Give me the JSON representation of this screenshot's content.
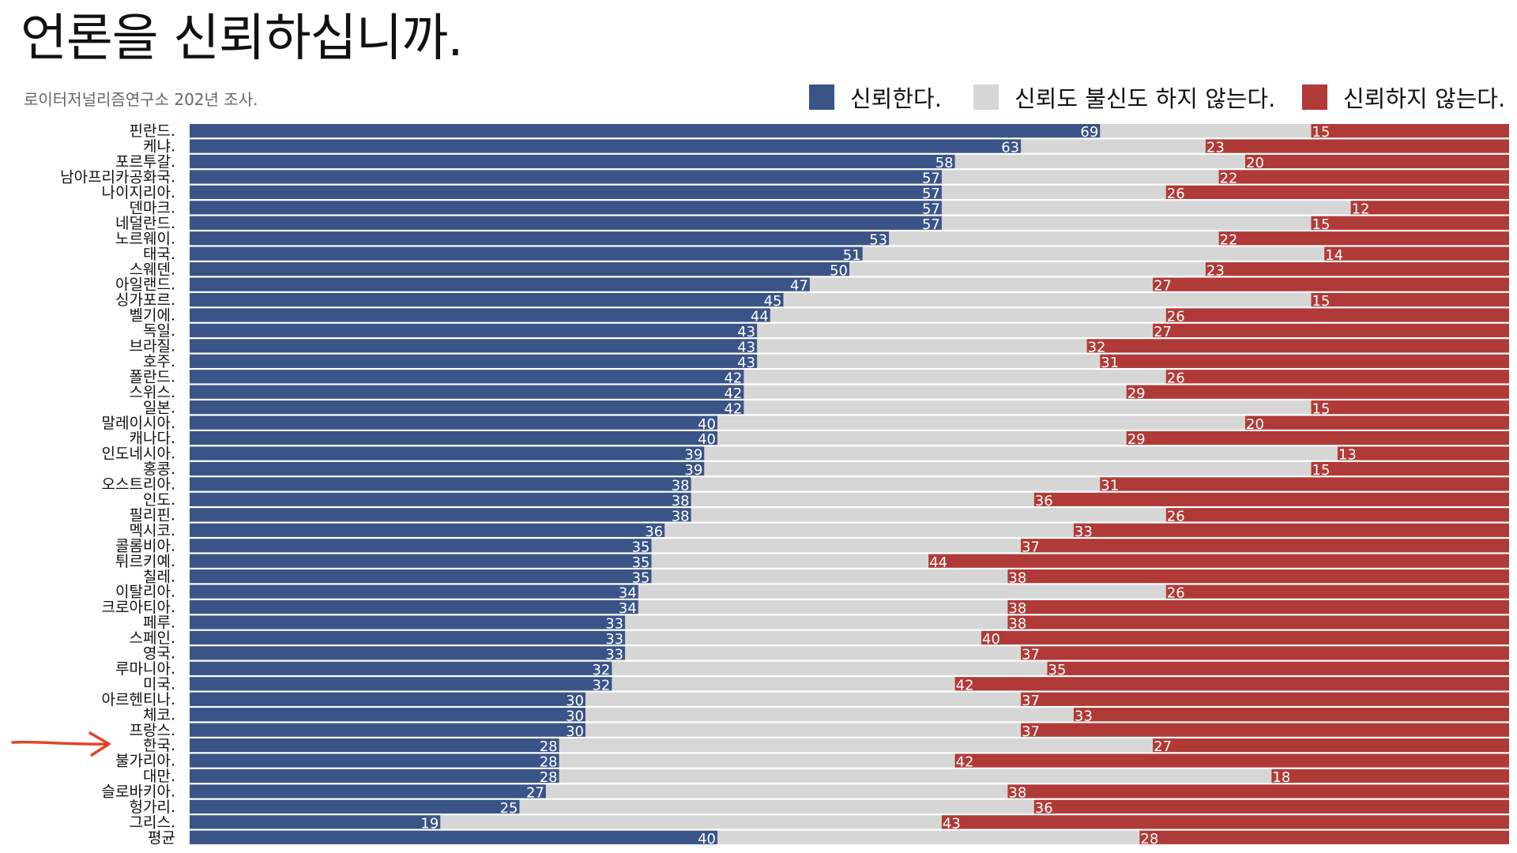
{
  "header": {
    "title": "언론을 신뢰하십니까.",
    "subtitle": "로이터저널리즘연구소 202년 조사."
  },
  "colors": {
    "trust": "#3a5487",
    "neutral": "#d6d6d6",
    "distrust": "#b03a37",
    "separator": "#ffffff",
    "arrow": "#e0442a"
  },
  "legend": [
    {
      "key": "trust",
      "label": "신뢰한다."
    },
    {
      "key": "neutral",
      "label": "신뢰도 불신도 하지 않는다."
    },
    {
      "key": "distrust",
      "label": "신뢰하지 않는다."
    }
  ],
  "annotation": {
    "arrow_target": "한국.",
    "icon": "red-hand-drawn-arrow-icon"
  },
  "chart_data": {
    "type": "bar",
    "orientation": "horizontal",
    "stacked": true,
    "normalized_to": 100,
    "title": "언론을 신뢰하십니까.",
    "subtitle": "로이터저널리즘연구소 202년 조사.",
    "xlim": [
      0,
      100
    ],
    "grid": false,
    "legend_position": "top-right",
    "categories": [
      "핀란드.",
      "케냐.",
      "포르투갈.",
      "남아프리카공화국.",
      "나이지리아.",
      "덴마크.",
      "네덜란드.",
      "노르웨이.",
      "태국.",
      "스웨덴.",
      "아일랜드.",
      "싱가포르.",
      "벨기에.",
      "독일.",
      "브라질.",
      "호주.",
      "폴란드.",
      "스위스.",
      "일본.",
      "말레이시아.",
      "캐나다.",
      "인도네시아.",
      "홍콩.",
      "오스트리아.",
      "인도.",
      "필리핀.",
      "멕시코.",
      "콜롬비아.",
      "튀르키예.",
      "칠레.",
      "이탈리아.",
      "크로아티아.",
      "페루.",
      "스페인.",
      "영국.",
      "루마니아.",
      "미국.",
      "아르헨티나.",
      "체코.",
      "프랑스.",
      "한국.",
      "불가리아.",
      "대만.",
      "슬로바키아.",
      "헝가리.",
      "그리스.",
      "평균"
    ],
    "series": [
      {
        "name": "신뢰한다.",
        "values": [
          69,
          63,
          58,
          57,
          57,
          57,
          57,
          53,
          51,
          50,
          47,
          45,
          44,
          43,
          43,
          43,
          42,
          42,
          42,
          40,
          40,
          39,
          39,
          38,
          38,
          38,
          36,
          35,
          35,
          35,
          34,
          34,
          33,
          33,
          33,
          32,
          32,
          30,
          30,
          30,
          28,
          28,
          28,
          27,
          25,
          19,
          40
        ]
      },
      {
        "name": "신뢰하지 않는다.",
        "values": [
          15,
          23,
          20,
          22,
          26,
          12,
          15,
          22,
          14,
          23,
          27,
          15,
          26,
          27,
          32,
          31,
          26,
          29,
          15,
          20,
          29,
          13,
          15,
          31,
          36,
          26,
          33,
          37,
          44,
          38,
          26,
          38,
          38,
          40,
          37,
          35,
          42,
          37,
          33,
          37,
          27,
          42,
          18,
          38,
          36,
          43,
          28
        ]
      }
    ]
  }
}
